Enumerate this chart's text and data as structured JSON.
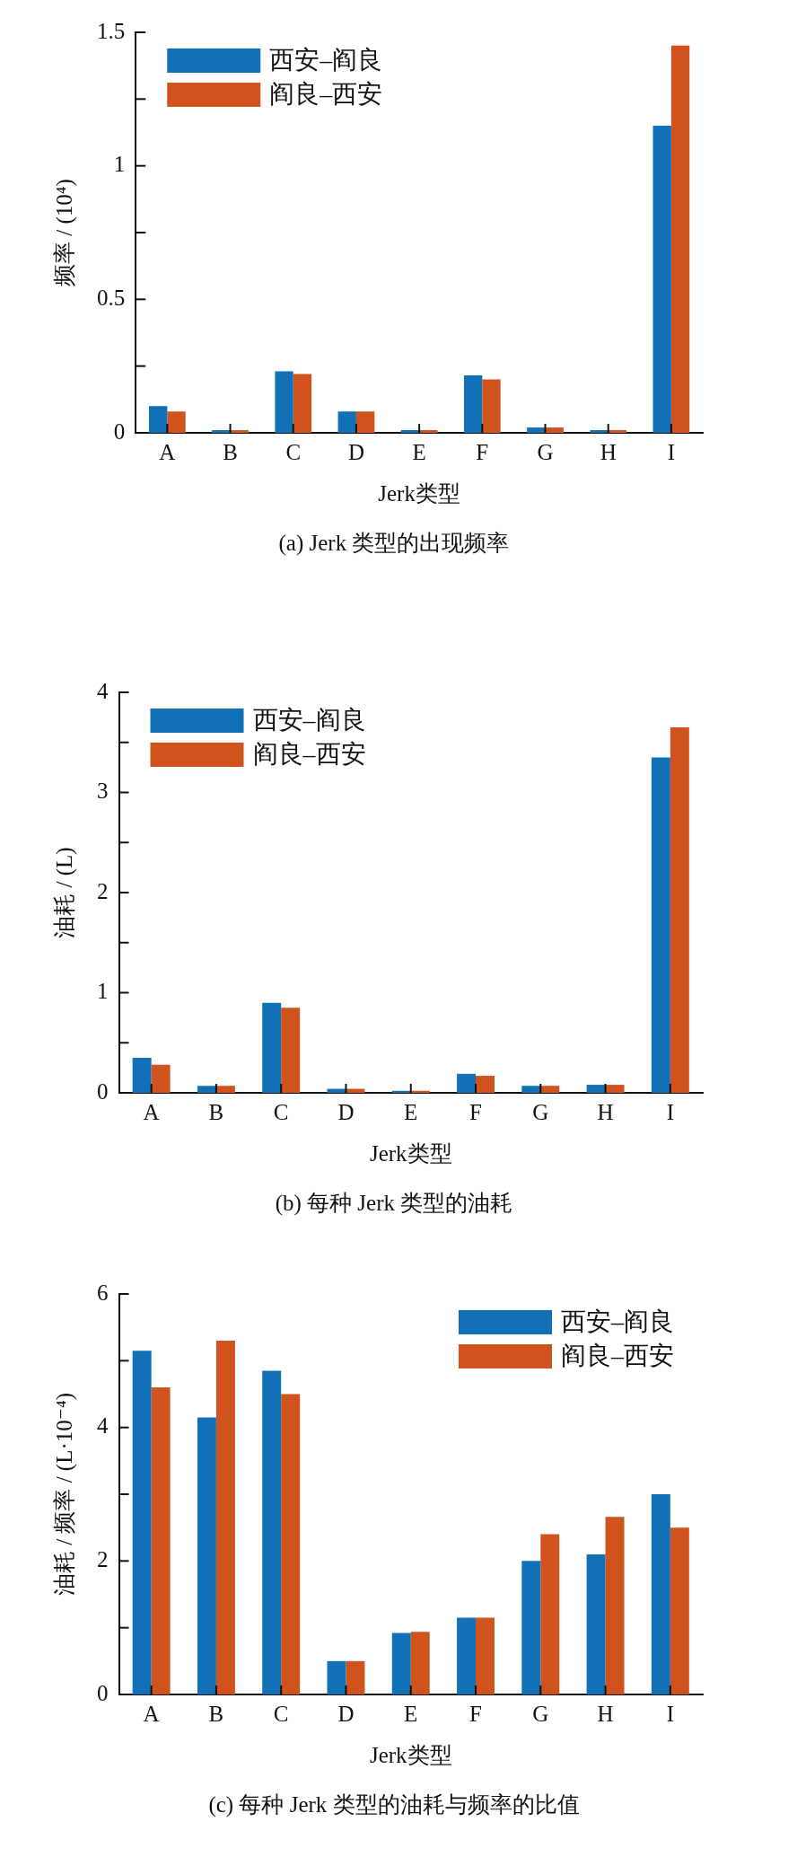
{
  "chart_data": [
    {
      "type": "bar",
      "title": "(a)  Jerk 类型的出现频率",
      "xlabel": "Jerk类型",
      "ylabel": "频率 / (10⁴)",
      "categories": [
        "A",
        "B",
        "C",
        "D",
        "E",
        "F",
        "G",
        "H",
        "I"
      ],
      "series": [
        {
          "name": "西安–阎良",
          "color": "#1170b6",
          "values": [
            0.1,
            0.01,
            0.23,
            0.08,
            0.01,
            0.215,
            0.02,
            0.01,
            1.15
          ]
        },
        {
          "name": "阎良–西安",
          "color": "#d0531e",
          "values": [
            0.08,
            0.01,
            0.22,
            0.08,
            0.01,
            0.2,
            0.02,
            0.01,
            1.45
          ]
        }
      ],
      "ylim": [
        0,
        1.5
      ],
      "yticks": [
        0,
        {
          "value": 0.25,
          "label": null
        },
        0.5,
        {
          "value": 0.75,
          "label": null
        },
        1,
        {
          "value": 1.25,
          "label": null
        },
        1.5
      ],
      "grid": false,
      "legend": "top left"
    },
    {
      "type": "bar",
      "title": "(b)  每种 Jerk 类型的油耗",
      "xlabel": "Jerk类型",
      "ylabel": "油耗 / (L)",
      "categories": [
        "A",
        "B",
        "C",
        "D",
        "E",
        "F",
        "G",
        "H",
        "I"
      ],
      "series": [
        {
          "name": "西安–阎良",
          "color": "#1170b6",
          "values": [
            0.35,
            0.07,
            0.9,
            0.04,
            0.02,
            0.19,
            0.07,
            0.08,
            3.35
          ]
        },
        {
          "name": "阎良–西安",
          "color": "#d0531e",
          "values": [
            0.28,
            0.07,
            0.85,
            0.04,
            0.02,
            0.17,
            0.07,
            0.08,
            3.65
          ]
        }
      ],
      "ylim": [
        0,
        4
      ],
      "yticks": [
        0,
        {
          "value": 0.5,
          "label": null
        },
        1,
        {
          "value": 1.5,
          "label": null
        },
        2,
        {
          "value": 2.5,
          "label": null
        },
        3,
        {
          "value": 3.5,
          "label": null
        },
        4
      ],
      "grid": false,
      "legend": "top left"
    },
    {
      "type": "bar",
      "title": "(c)  每种 Jerk 类型的油耗与频率的比值",
      "xlabel": "Jerk类型",
      "ylabel": "油耗 / 频率 / (L·10⁻⁴)",
      "categories": [
        "A",
        "B",
        "C",
        "D",
        "E",
        "F",
        "G",
        "H",
        "I"
      ],
      "series": [
        {
          "name": "西安–阎良",
          "color": "#1170b6",
          "values": [
            5.15,
            4.15,
            4.85,
            0.5,
            0.92,
            1.15,
            2.0,
            2.1,
            3.0
          ]
        },
        {
          "name": "阎良–西安",
          "color": "#d0531e",
          "values": [
            4.6,
            5.3,
            4.5,
            0.5,
            0.94,
            1.15,
            2.4,
            2.66,
            2.5
          ]
        }
      ],
      "ylim": [
        0,
        6
      ],
      "yticks": [
        0,
        {
          "value": 1,
          "label": null
        },
        2,
        {
          "value": 3,
          "label": null
        },
        4,
        {
          "value": 5,
          "label": null
        },
        6
      ],
      "grid": false,
      "legend": "top right"
    }
  ]
}
